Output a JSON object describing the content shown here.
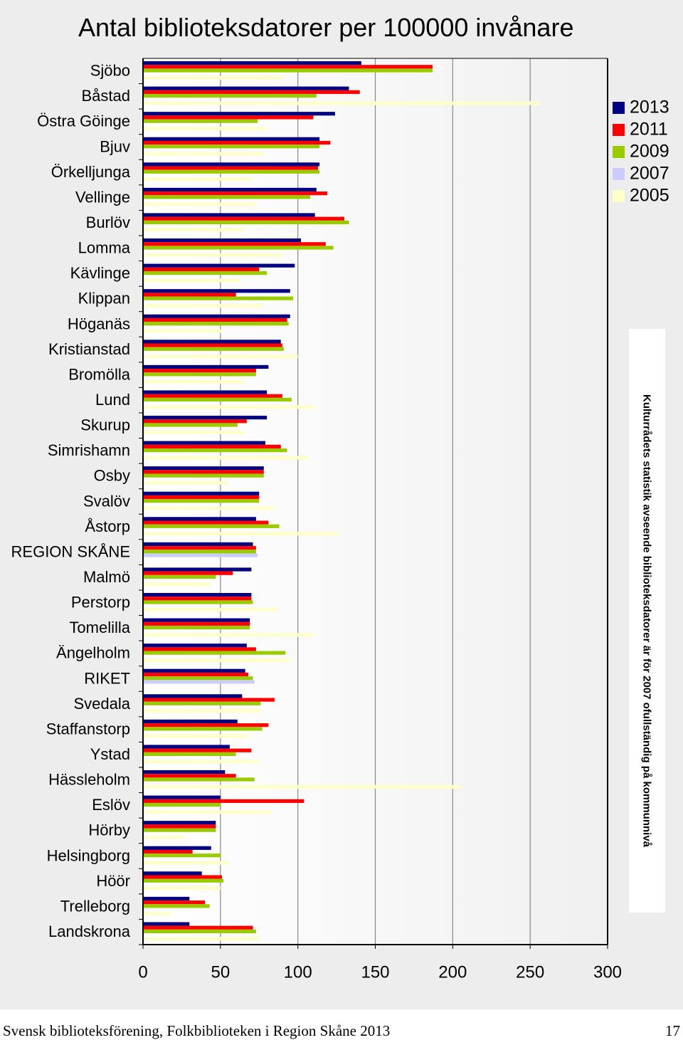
{
  "chart_data": {
    "type": "bar",
    "orientation": "horizontal",
    "title": "Antal biblioteksdatorer per 100000 invånare",
    "xlabel": "",
    "ylabel": "",
    "xlim": [
      0,
      300
    ],
    "xticks": [
      "0",
      "50",
      "100",
      "150",
      "200",
      "250",
      "300"
    ],
    "xtick_values": [
      0,
      50,
      100,
      150,
      200,
      250,
      300
    ],
    "grid": true,
    "legend_position": "right",
    "categories": [
      "Sjöbo",
      "Båstad",
      "Östra Göinge",
      "Bjuv",
      "Örkelljunga",
      "Vellinge",
      "Burlöv",
      "Lomma",
      "Kävlinge",
      "Klippan",
      "Höganäs",
      "Kristianstad",
      "Bromölla",
      "Lund",
      "Skurup",
      "Simrishamn",
      "Osby",
      "Svalöv",
      "Åstorp",
      "REGION SKÅNE",
      "Malmö",
      "Perstorp",
      "Tomelilla",
      "Ängelholm",
      "RIKET",
      "Svedala",
      "Staffanstorp",
      "Ystad",
      "Hässleholm",
      "Eslöv",
      "Hörby",
      "Helsingborg",
      "Höör",
      "Trelleborg",
      "Landskrona"
    ],
    "series": [
      {
        "name": "2013",
        "color": "#000080",
        "values": [
          141,
          133,
          124,
          114,
          114,
          112,
          111,
          102,
          98,
          95,
          95,
          89,
          81,
          80,
          80,
          79,
          78,
          75,
          73,
          71,
          70,
          70,
          69,
          67,
          66,
          64,
          61,
          56,
          53,
          50,
          47,
          44,
          38,
          30,
          30
        ]
      },
      {
        "name": "2011",
        "color": "#ff0000",
        "values": [
          187,
          140,
          110,
          121,
          113,
          119,
          130,
          118,
          75,
          60,
          93,
          90,
          73,
          90,
          67,
          89,
          78,
          75,
          81,
          73,
          58,
          70,
          69,
          73,
          68,
          85,
          81,
          70,
          60,
          104,
          47,
          32,
          51,
          40,
          71
        ]
      },
      {
        "name": "2009",
        "color": "#99cc00",
        "values": [
          187,
          112,
          74,
          114,
          114,
          108,
          133,
          123,
          80,
          97,
          94,
          91,
          73,
          96,
          61,
          93,
          78,
          75,
          88,
          73,
          47,
          71,
          69,
          92,
          71,
          76,
          77,
          60,
          72,
          50,
          47,
          50,
          52,
          43,
          73
        ]
      },
      {
        "name": "2007",
        "color": "#ccccff",
        "values": [
          0,
          0,
          0,
          0,
          0,
          0,
          0,
          0,
          0,
          0,
          0,
          0,
          0,
          0,
          0,
          0,
          0,
          0,
          0,
          74,
          0,
          0,
          0,
          0,
          72,
          0,
          0,
          0,
          0,
          0,
          0,
          0,
          0,
          0,
          0
        ]
      },
      {
        "name": "2005",
        "color": "#ffffcc",
        "values": [
          90,
          256,
          80,
          78,
          70,
          73,
          65,
          90,
          63,
          77,
          51,
          100,
          65,
          111,
          66,
          107,
          55,
          85,
          126,
          0,
          44,
          87,
          110,
          95,
          0,
          76,
          68,
          75,
          205,
          83,
          26,
          55,
          50,
          18,
          75
        ]
      }
    ]
  },
  "note": "Kulturrådets statistik avseende biblioteksdatorer är för 2007 ofullständig på kommunnivå",
  "footer": {
    "left": "Svensk biblioteksförening, Folkbiblioteken i Region Skåne 2013",
    "page_number": "17"
  }
}
